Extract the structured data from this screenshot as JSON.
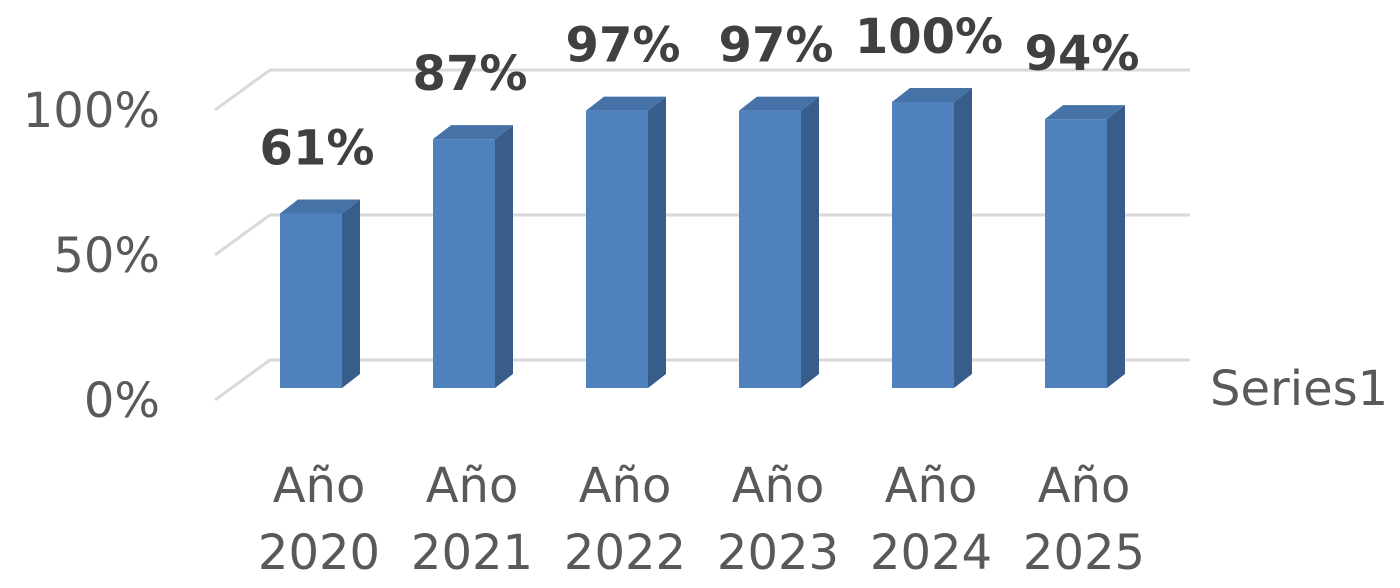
{
  "chart_data": {
    "type": "bar3d",
    "categories": [
      "Año 2020",
      "Año 2021",
      "Año 2022",
      "Año 2023",
      "Año 2024",
      "Año 2025"
    ],
    "series": [
      {
        "name": "Series1",
        "color": "#4f81bd",
        "values": [
          61,
          87,
          97,
          97,
          100,
          94
        ],
        "value_labels": [
          "61%",
          "87%",
          "97%",
          "97%",
          "100%",
          "94%"
        ]
      }
    ],
    "ylim": [
      0,
      100
    ],
    "yticks": [
      {
        "value": 0,
        "label": "0%"
      },
      {
        "value": 50,
        "label": "50%"
      },
      {
        "value": 100,
        "label": "100%"
      }
    ],
    "grid": true,
    "legend": "right"
  }
}
